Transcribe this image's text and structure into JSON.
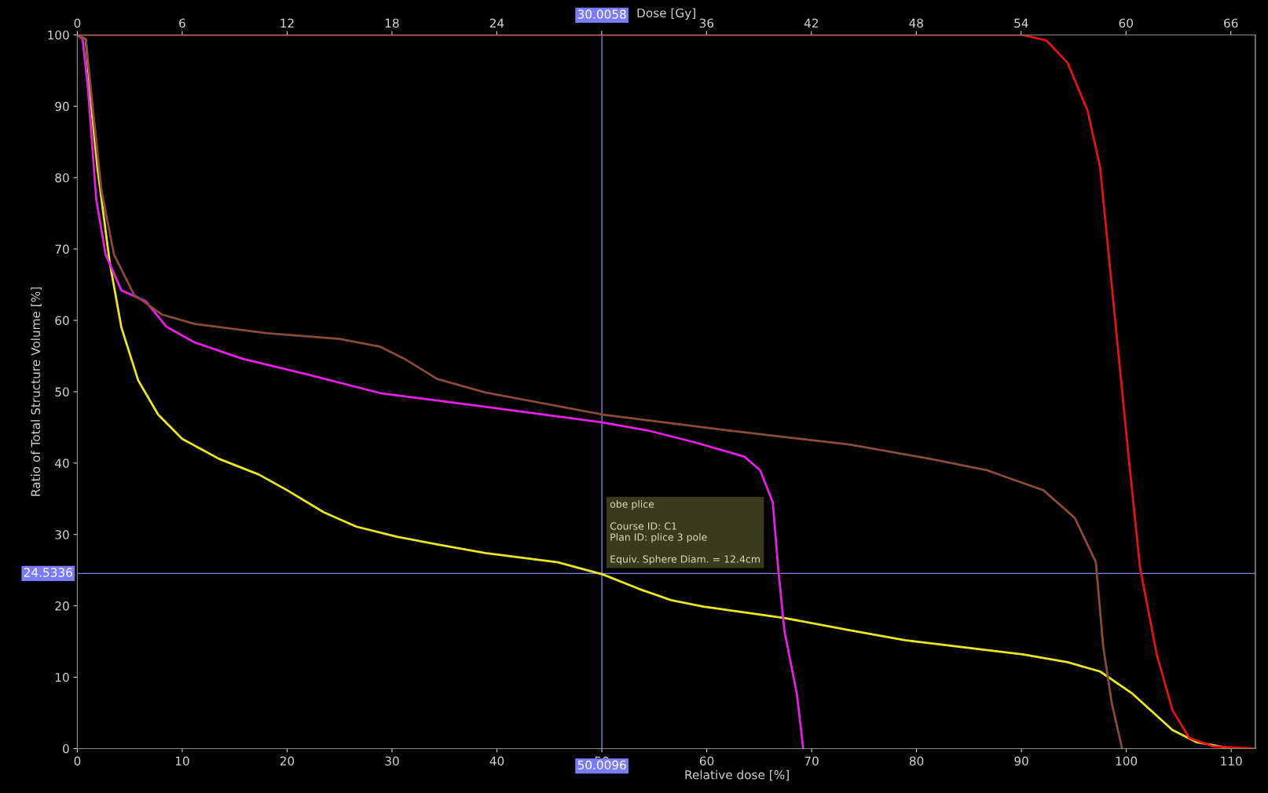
{
  "chart_data": {
    "type": "line",
    "xlabel": "Relative dose [%]",
    "x2label": "Dose [Gy]",
    "ylabel": "Ratio of Total Structure Volume [%]",
    "xlim": [
      0,
      112.3
    ],
    "xticks": [
      0,
      10,
      20,
      30,
      40,
      50,
      60,
      70,
      80,
      90,
      100,
      110
    ],
    "x2lim": [
      0,
      67.4
    ],
    "x2ticks": [
      0,
      6,
      12,
      18,
      24,
      {
        "value": 30,
        "label": null
      },
      36,
      42,
      48,
      54,
      60,
      66
    ],
    "ylim": [
      0,
      100
    ],
    "yticks": [
      0,
      10,
      20,
      30,
      40,
      50,
      60,
      70,
      80,
      90,
      100
    ],
    "grid": false,
    "marker": "none",
    "line_style": "solid",
    "series": [
      {
        "color": "#e8e81e",
        "x": [
          0,
          0.8,
          1.3,
          1.9,
          3.1,
          4.2,
          5.8,
          7.7,
          10,
          13.5,
          17.3,
          20,
          23.5,
          26.6,
          30.4,
          34.3,
          38.9,
          45.8,
          50.1,
          53.5,
          56.6,
          59.7,
          67.4,
          73.6,
          78.9,
          85.1,
          90.1,
          94.4,
          97.5,
          100.5,
          104.4,
          106.7,
          110,
          112.3
        ],
        "values": [
          100,
          99.4,
          90.5,
          81.5,
          68,
          59,
          51.6,
          46.8,
          43.4,
          40.6,
          38.4,
          36.2,
          33.1,
          31.1,
          29.7,
          28.6,
          27.4,
          26.1,
          24.4,
          22.4,
          20.8,
          19.9,
          18.3,
          16.6,
          15.2,
          14.1,
          13.2,
          12.1,
          10.8,
          7.8,
          2.6,
          0.9,
          0,
          0
        ]
      },
      {
        "color": "#e81ee8",
        "x": [
          0,
          0.5,
          1,
          1.8,
          2.7,
          4.2,
          6.5,
          8.5,
          11.2,
          15.8,
          22,
          28.9,
          38.9,
          50.1,
          54.3,
          58.9,
          63.6,
          65.1,
          66.3,
          66.8,
          67.4,
          68.6,
          69.2
        ],
        "values": [
          100,
          99.4,
          92.7,
          77,
          69.2,
          64.2,
          62.7,
          59.1,
          56.9,
          54.6,
          52.4,
          49.8,
          47.9,
          45.7,
          44.6,
          42.9,
          40.9,
          39,
          34.5,
          25.5,
          16.6,
          7.6,
          0
        ]
      },
      {
        "color": "#8b4a3c",
        "x": [
          0,
          0.8,
          1.5,
          2.3,
          3.5,
          5.4,
          8.1,
          11.2,
          18.1,
          25,
          28.9,
          31.2,
          34.3,
          38.9,
          50.1,
          62,
          73.6,
          81.3,
          86.7,
          92.1,
          95.1,
          97.1,
          97.8,
          98.6,
          99.6
        ],
        "values": [
          100,
          99.4,
          89.4,
          78.2,
          69.2,
          63.6,
          60.8,
          59.5,
          58.2,
          57.4,
          56.3,
          54.6,
          51.8,
          49.9,
          46.8,
          44.6,
          42.6,
          40.6,
          39,
          36.2,
          32.3,
          26.1,
          14.3,
          6.5,
          0
        ]
      },
      {
        "color": "#e81010",
        "x": [
          0,
          90.1,
          92.4,
          94.4,
          96.3,
          97.5,
          99,
          100.2,
          101.3,
          102.9,
          104.4,
          106,
          108.3,
          112.3
        ],
        "values": [
          100,
          100,
          99.2,
          96.1,
          89.4,
          81.5,
          59.1,
          41.2,
          25.5,
          13.2,
          5.4,
          1.5,
          0.3,
          0
        ]
      }
    ],
    "ref_lines": [
      {
        "axis": "x",
        "value": 50.0096,
        "label": "50.0096",
        "color": "#7b7bff"
      },
      {
        "axis": "y",
        "value": 24.5336,
        "label": "24.5336",
        "color": "#7b7bff"
      }
    ],
    "annotations": [
      {
        "text": "30.0058",
        "x": 50.0096,
        "y": 100
      },
      "obe plice\n\nCourse ID: C1\nPlan ID: plice 3 pole\n\nEquiv. Sphere Diam. = 12.4cm"
    ]
  }
}
